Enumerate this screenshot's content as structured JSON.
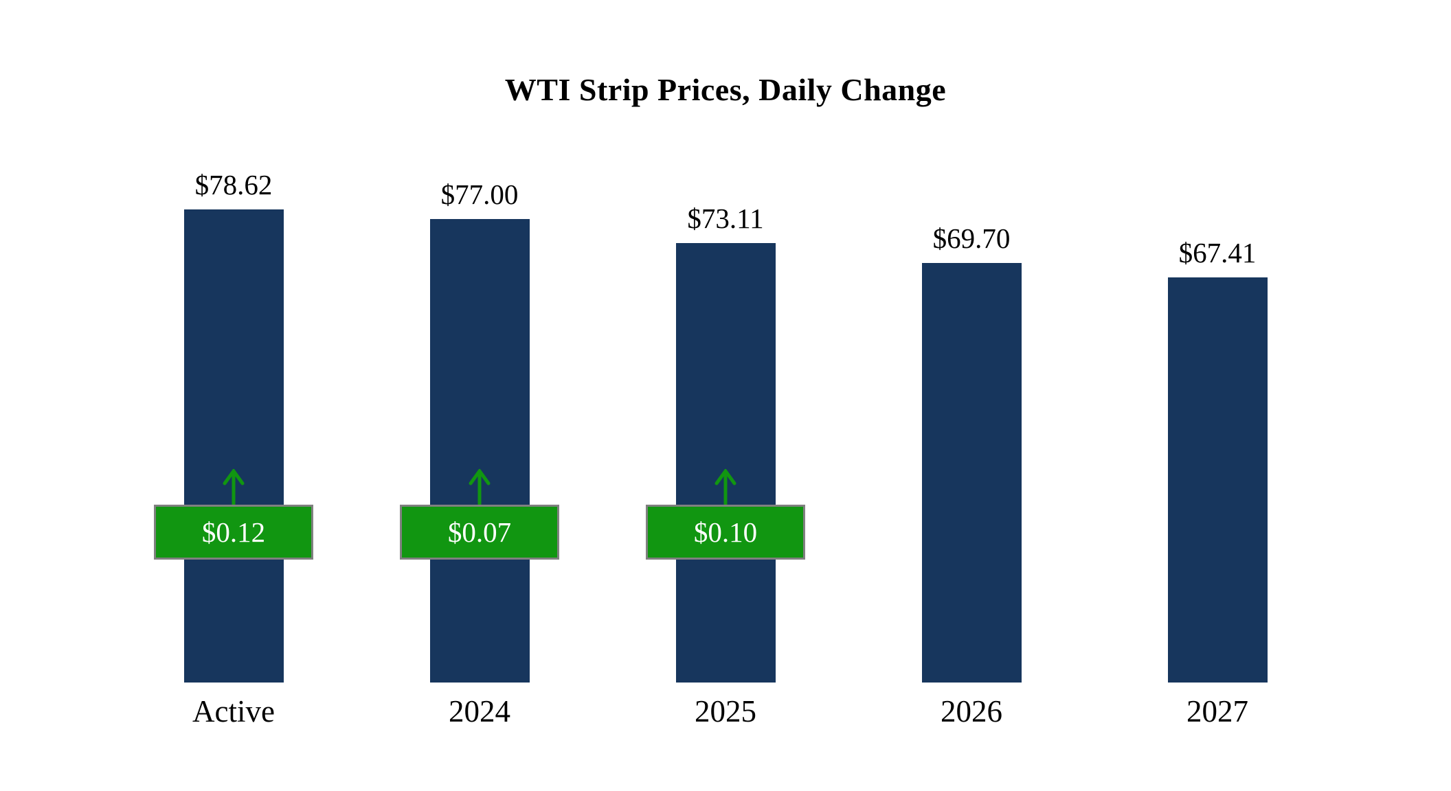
{
  "title": "WTI Strip Prices, Daily Change",
  "chart_data": {
    "type": "bar",
    "title": "WTI Strip Prices, Daily Change",
    "categories": [
      "Active",
      "2024",
      "2025",
      "2026",
      "2027"
    ],
    "values": [
      78.62,
      77.0,
      73.11,
      69.7,
      67.41
    ],
    "value_labels": [
      "$78.62",
      "$77.00",
      "$73.11",
      "$69.70",
      "$67.41"
    ],
    "daily_changes": [
      {
        "label": "$0.12",
        "direction": "up"
      },
      {
        "label": "$0.07",
        "direction": "up"
      },
      {
        "label": "$0.10",
        "direction": "up"
      },
      null,
      null
    ],
    "ylim": [
      0,
      80
    ],
    "ylabel": "",
    "xlabel": "",
    "grid": false,
    "legend": false,
    "colors": {
      "bar": "#17365d",
      "change_badge": "#119611",
      "change_text": "#ffffff",
      "badge_border": "#808080",
      "arrow": "#119611"
    }
  }
}
